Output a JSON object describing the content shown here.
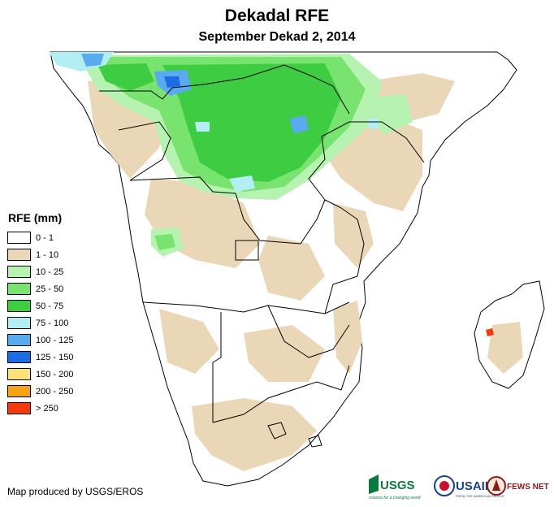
{
  "header": {
    "title": "Dekadal RFE",
    "subtitle": "September Dekad 2, 2014"
  },
  "legend": {
    "title": "RFE (mm)",
    "items": [
      {
        "label": "0 - 1",
        "color": "#ffffff"
      },
      {
        "label": "1 - 10",
        "color": "#ead7b7"
      },
      {
        "label": "10 - 25",
        "color": "#b6f2b0"
      },
      {
        "label": "25 - 50",
        "color": "#78e36e"
      },
      {
        "label": "50 - 75",
        "color": "#3ecc42"
      },
      {
        "label": "75 - 100",
        "color": "#b3eef2"
      },
      {
        "label": "100 - 125",
        "color": "#5aaaf0"
      },
      {
        "label": "125 - 150",
        "color": "#1e6be6"
      },
      {
        "label": "150 - 200",
        "color": "#fbe17a"
      },
      {
        "label": "200 - 250",
        "color": "#f5a315"
      },
      {
        "label": "> 250",
        "color": "#f53a10"
      }
    ]
  },
  "credit": "Map produced by USGS/EROS",
  "logos": {
    "usgs": "USGS",
    "usgs_tagline": "science for a changing world",
    "usaid": "USAID",
    "usaid_tagline": "FROM THE AMERICAN PEOPLE",
    "fews": "FEWS NET"
  }
}
